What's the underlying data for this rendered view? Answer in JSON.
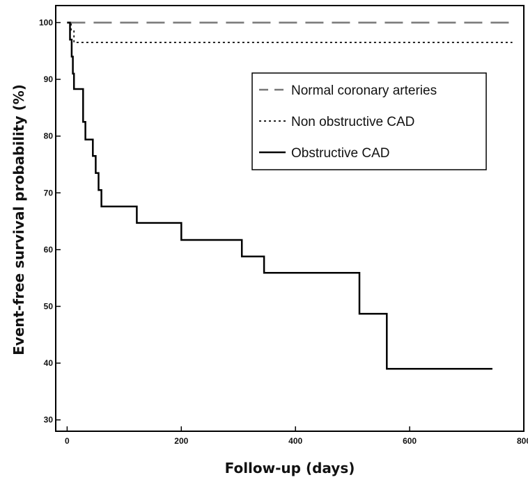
{
  "chart_data": {
    "type": "line",
    "subtype": "kaplan-meier-step",
    "title": "",
    "xlabel": "Follow-up (days)",
    "ylabel": "Event-free survival probability (%)",
    "xlim": [
      -20,
      800
    ],
    "ylim": [
      28,
      103
    ],
    "xticks": [
      0,
      200,
      400,
      600,
      800
    ],
    "yticks": [
      30,
      40,
      50,
      60,
      70,
      80,
      90,
      100
    ],
    "grid": false,
    "legend_position": "upper-right",
    "series": [
      {
        "name": "Normal coronary arteries",
        "style": "dashed",
        "color": "#777777",
        "x": [
          0,
          780
        ],
        "y": [
          100,
          100
        ]
      },
      {
        "name": "Non obstructive CAD",
        "style": "dotted",
        "color": "#222222",
        "x": [
          0,
          7,
          12,
          780
        ],
        "y": [
          100,
          98.5,
          96.5,
          96.5
        ]
      },
      {
        "name": "Obstructive CAD",
        "style": "solid",
        "color": "#000000",
        "x": [
          0,
          5,
          8,
          10,
          12,
          15,
          28,
          32,
          45,
          50,
          55,
          60,
          122,
          200,
          306,
          345,
          512,
          560,
          745
        ],
        "y": [
          100,
          97,
          94,
          91,
          88.3,
          88.3,
          82.5,
          79.4,
          76.5,
          73.5,
          70.5,
          67.6,
          64.7,
          61.7,
          58.8,
          55.9,
          48.7,
          39,
          39
        ]
      }
    ]
  }
}
